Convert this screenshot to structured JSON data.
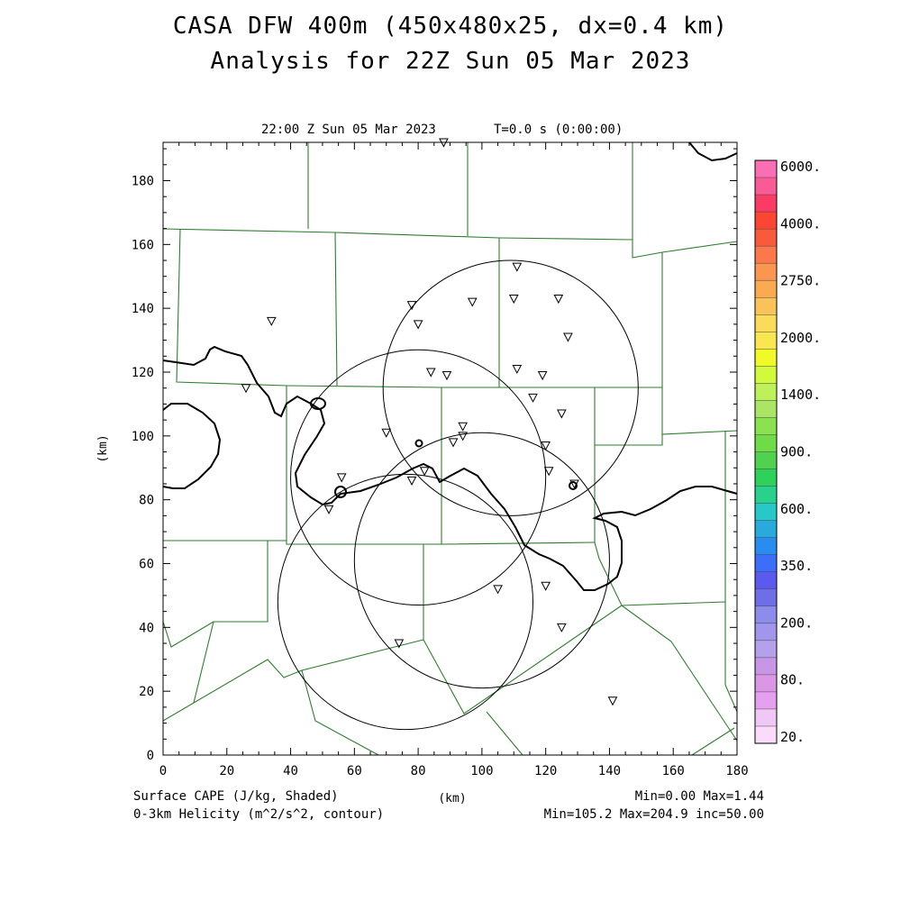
{
  "title_line1": "CASA DFW 400m (450x480x25, dx=0.4 km)",
  "title_line2": "Analysis for 22Z Sun 05 Mar 2023",
  "plot_time": "22:00 Z Sun 05 Mar 2023",
  "plot_tval": "T=0.0 s (0:00:00)",
  "axes": {
    "xlabel": "(km)",
    "ylabel": "(km)",
    "xlim": [
      0,
      180
    ],
    "ylim": [
      0,
      192
    ],
    "xticks": [
      "0",
      "20",
      "40",
      "60",
      "80",
      "100",
      "120",
      "140",
      "160",
      "180"
    ],
    "yticks": [
      "0",
      "20",
      "40",
      "60",
      "80",
      "100",
      "120",
      "140",
      "160",
      "180"
    ]
  },
  "fields": {
    "shaded_label": "Surface CAPE (J/kg, Shaded)",
    "contour_label": "0-3km Helicity (m^2/s^2, contour)",
    "shaded_stats": "Min=0.00 Max=1.44",
    "contour_stats": "Min=105.2 Max=204.9 inc=50.00"
  },
  "colorbar": {
    "labels": [
      "6000.",
      "4000.",
      "2750.",
      "2000.",
      "1400.",
      "900.",
      "600.",
      "350.",
      "200.",
      "80.",
      "20."
    ],
    "colors_top_to_bottom": [
      "#fa6eb4",
      "#fa5a96",
      "#fa3c64",
      "#fa4632",
      "#fa5a3c",
      "#fa784b",
      "#fa9650",
      "#faaa50",
      "#fac35a",
      "#fadc5a",
      "#fae650",
      "#f0fa28",
      "#d2fa3c",
      "#bef05a",
      "#aae664",
      "#8ce150",
      "#6edc46",
      "#50d250",
      "#2ed25a",
      "#28d28c",
      "#28c8c8",
      "#28aadc",
      "#288cf0",
      "#3c6efa",
      "#5a5af0",
      "#6e6ee6",
      "#8c8ced",
      "#a096eb",
      "#b4a0eb",
      "#c896e6",
      "#dc96e6",
      "#e6a0f0",
      "#f0c8f5",
      "#fadcfa"
    ]
  },
  "colors": {
    "boundary": "#2e7d2e",
    "helicity_contour": "#000000",
    "radar_ring": "#000000"
  },
  "radar_rings_km": [
    {
      "cx": 76,
      "cy": 48,
      "r": 40
    },
    {
      "cx": 80,
      "cy": 87,
      "r": 40
    },
    {
      "cx": 100,
      "cy": 61,
      "r": 40
    },
    {
      "cx": 109,
      "cy": 115,
      "r": 40
    }
  ],
  "stations_km": [
    [
      88,
      192
    ],
    [
      34,
      136
    ],
    [
      26,
      115
    ],
    [
      78,
      141
    ],
    [
      80,
      135
    ],
    [
      97,
      142
    ],
    [
      110,
      143
    ],
    [
      111,
      153
    ],
    [
      124,
      143
    ],
    [
      127,
      131
    ],
    [
      111,
      121
    ],
    [
      119,
      119
    ],
    [
      84,
      120
    ],
    [
      89,
      119
    ],
    [
      116,
      112
    ],
    [
      125,
      107
    ],
    [
      70,
      101
    ],
    [
      94,
      103
    ],
    [
      94,
      100
    ],
    [
      91,
      98
    ],
    [
      120,
      97
    ],
    [
      121,
      89
    ],
    [
      82,
      89
    ],
    [
      78,
      86
    ],
    [
      56,
      87
    ],
    [
      52,
      77
    ],
    [
      105,
      52
    ],
    [
      120,
      53
    ],
    [
      125,
      40
    ],
    [
      74,
      35
    ],
    [
      141,
      17
    ],
    [
      129,
      85
    ]
  ]
}
